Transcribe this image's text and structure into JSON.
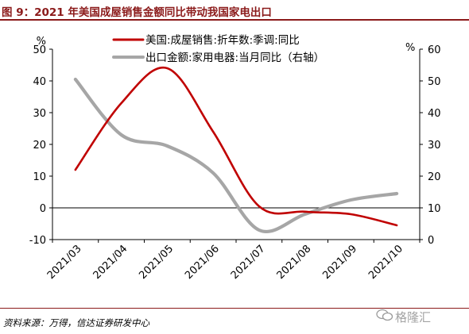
{
  "figure": {
    "title": "图 9：2021 年美国成屋销售金额同比带动我国家电出口",
    "source": "资料来源：万得，信达证券研发中心",
    "watermark": "格隆汇",
    "watermark_icon": "wechat-icon"
  },
  "chart_data": {
    "type": "line",
    "categories": [
      "2021/03",
      "2021/04",
      "2021/05",
      "2021/06",
      "2021/07",
      "2021/08",
      "2021/09",
      "2021/10"
    ],
    "left_axis": {
      "unit": "%",
      "ylim": [
        -10,
        50
      ],
      "ticks": [
        -10,
        0,
        10,
        20,
        30,
        40,
        50
      ]
    },
    "right_axis": {
      "unit": "%",
      "ylim": [
        0,
        60
      ],
      "ticks": [
        0,
        10,
        20,
        30,
        40,
        50,
        60
      ]
    },
    "legend_position": "top-center",
    "grid": false,
    "series": [
      {
        "name": "美国:成屋销售:折年数:季调:同比",
        "axis": "left",
        "color": "#c00000",
        "values": [
          12,
          33,
          44,
          24,
          0.5,
          -1.2,
          -2,
          -5.5
        ]
      },
      {
        "name": "出口金额:家用电器:当月同比（右轴）",
        "axis": "right",
        "color": "#a6a6a6",
        "values": [
          50.5,
          33,
          29.5,
          21,
          3,
          8,
          12.5,
          14.5
        ]
      }
    ]
  }
}
